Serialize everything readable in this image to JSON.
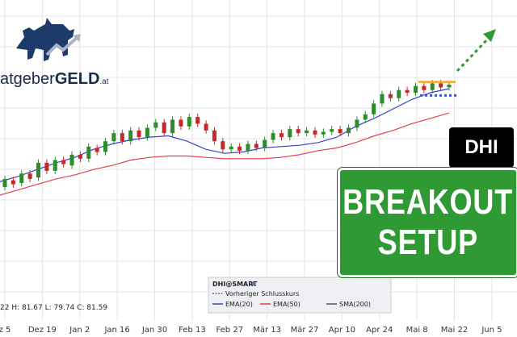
{
  "logo": {
    "text_light": "atgeber",
    "text_bold": "GELD",
    "suffix": ".at"
  },
  "ticker": "DHI",
  "headline": {
    "line1": "BREAKOUT",
    "line2": "SETUP"
  },
  "ohlc_text": "22  H: 81.67  L: 79.74  C: 81.59",
  "legend": {
    "symbol": "DHI@SMART",
    "prev_close": "Vorheriger Schlusskurs",
    "ema20": "EMA(20)",
    "ema50": "EMA(50)",
    "sma200": "SMA(200)"
  },
  "colors": {
    "up": "#2e8b2e",
    "down": "#c62828",
    "ema20": "#3344cc",
    "ema50": "#e04050",
    "resistance": "#f5a623",
    "support": "#3355ee",
    "arrow": "#2e9a33",
    "grid": "#e4e4e4"
  },
  "chart_data": {
    "type": "candlestick",
    "x_tick_labels": [
      "z 5",
      "Dez 19",
      "Jan 2",
      "Jan 16",
      "Jan 30",
      "Feb 13",
      "Feb 27",
      "Mär 13",
      "Mär 27",
      "Apr 10",
      "Apr 24",
      "Mai 8",
      "Mai 22",
      "Jun 5"
    ],
    "y_axis": {
      "visible": false,
      "ylim": [
        0,
        100
      ]
    },
    "series": [
      {
        "name": "EMA(20)",
        "values": [
          22,
          26,
          31,
          36,
          40,
          46,
          50,
          53,
          55,
          56,
          52,
          46,
          43,
          44,
          47,
          48,
          49,
          51,
          55,
          63,
          69,
          76,
          83,
          88,
          91
        ]
      },
      {
        "name": "EMA(50)",
        "values": [
          12,
          16,
          20,
          24,
          27,
          31,
          34,
          38,
          40,
          41,
          41,
          40,
          39,
          39,
          39,
          40,
          42,
          45,
          47,
          51,
          56,
          60,
          65,
          69,
          73
        ]
      }
    ],
    "candles": [
      {
        "o": 18,
        "c": 24
      },
      {
        "o": 23,
        "c": 20
      },
      {
        "o": 21,
        "c": 28
      },
      {
        "o": 28,
        "c": 24
      },
      {
        "o": 25,
        "c": 36
      },
      {
        "o": 36,
        "c": 30
      },
      {
        "o": 30,
        "c": 38
      },
      {
        "o": 38,
        "c": 35
      },
      {
        "o": 34,
        "c": 42
      },
      {
        "o": 42,
        "c": 39
      },
      {
        "o": 39,
        "c": 48
      },
      {
        "o": 47,
        "c": 44
      },
      {
        "o": 44,
        "c": 52
      },
      {
        "o": 52,
        "c": 58
      },
      {
        "o": 58,
        "c": 52
      },
      {
        "o": 52,
        "c": 60
      },
      {
        "o": 60,
        "c": 55
      },
      {
        "o": 55,
        "c": 62
      },
      {
        "o": 62,
        "c": 66
      },
      {
        "o": 66,
        "c": 58
      },
      {
        "o": 58,
        "c": 68
      },
      {
        "o": 68,
        "c": 63
      },
      {
        "o": 63,
        "c": 70
      },
      {
        "o": 70,
        "c": 65
      },
      {
        "o": 65,
        "c": 60
      },
      {
        "o": 60,
        "c": 52
      },
      {
        "o": 52,
        "c": 46
      },
      {
        "o": 46,
        "c": 48
      },
      {
        "o": 48,
        "c": 45
      },
      {
        "o": 45,
        "c": 50
      },
      {
        "o": 50,
        "c": 47
      },
      {
        "o": 47,
        "c": 53
      },
      {
        "o": 53,
        "c": 58
      },
      {
        "o": 58,
        "c": 55
      },
      {
        "o": 55,
        "c": 61
      },
      {
        "o": 61,
        "c": 58
      },
      {
        "o": 58,
        "c": 60
      },
      {
        "o": 60,
        "c": 57
      },
      {
        "o": 57,
        "c": 59
      },
      {
        "o": 59,
        "c": 61
      },
      {
        "o": 61,
        "c": 58
      },
      {
        "o": 58,
        "c": 62
      },
      {
        "o": 62,
        "c": 68
      },
      {
        "o": 68,
        "c": 72
      },
      {
        "o": 72,
        "c": 80
      },
      {
        "o": 80,
        "c": 87
      },
      {
        "o": 87,
        "c": 84
      },
      {
        "o": 84,
        "c": 90
      },
      {
        "o": 90,
        "c": 88
      },
      {
        "o": 88,
        "c": 93
      },
      {
        "o": 93,
        "c": 90
      },
      {
        "o": 90,
        "c": 95
      },
      {
        "o": 95,
        "c": 92
      },
      {
        "o": 92,
        "c": 94
      }
    ],
    "resistance_level": 96,
    "support_level": 86
  }
}
